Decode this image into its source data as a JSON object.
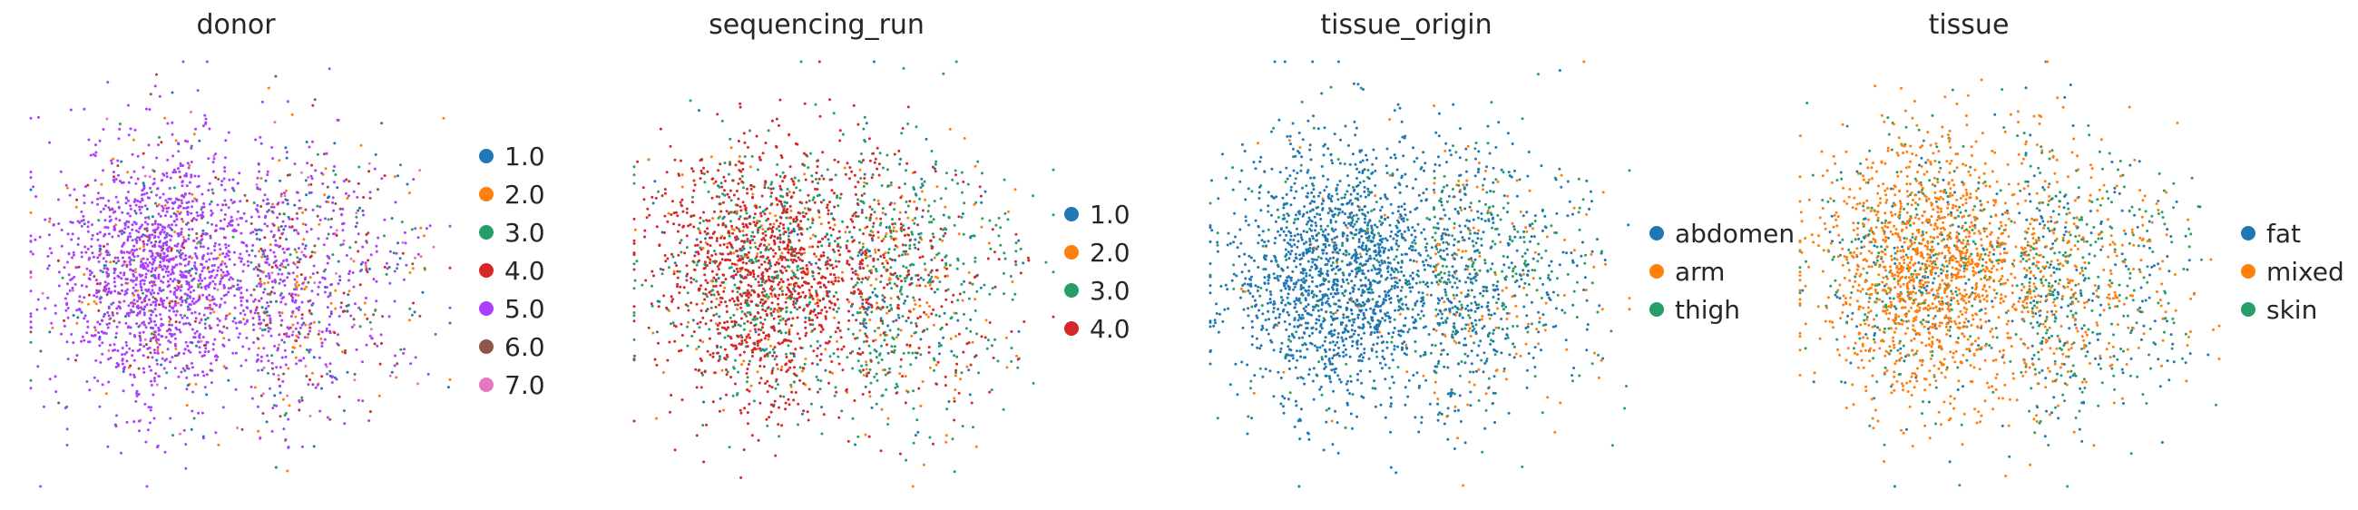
{
  "figure": {
    "palette": [
      "#1f77b4",
      "#ff7f0e",
      "#279e68",
      "#d62728",
      "#aa40fc",
      "#8c564b",
      "#e377c2"
    ]
  },
  "chart_data": [
    {
      "type": "scatter",
      "title": "donor",
      "legend": [
        "1.0",
        "2.0",
        "3.0",
        "4.0",
        "5.0",
        "6.0",
        "7.0"
      ],
      "legend_position": "right",
      "categories": [
        "1.0",
        "2.0",
        "3.0",
        "4.0",
        "5.0",
        "6.0",
        "7.0"
      ],
      "dominant_category": "5.0",
      "category_share": [
        0.05,
        0.08,
        0.05,
        0.04,
        0.7,
        0.05,
        0.03
      ],
      "axes_visible": false,
      "grid": false
    },
    {
      "type": "scatter",
      "title": "sequencing_run",
      "legend": [
        "1.0",
        "2.0",
        "3.0",
        "4.0"
      ],
      "legend_position": "right",
      "categories": [
        "1.0",
        "2.0",
        "3.0",
        "4.0"
      ],
      "dominant_category": "4.0",
      "category_share": [
        0.08,
        0.12,
        0.38,
        0.42
      ],
      "axes_visible": false,
      "grid": false
    },
    {
      "type": "scatter",
      "title": "tissue_origin",
      "legend": [
        "abdomen",
        "arm",
        "thigh"
      ],
      "legend_position": "right",
      "categories": [
        "abdomen",
        "arm",
        "thigh"
      ],
      "dominant_category": "abdomen",
      "category_share": [
        0.78,
        0.04,
        0.18
      ],
      "axes_visible": false,
      "grid": false
    },
    {
      "type": "scatter",
      "title": "tissue",
      "legend": [
        "fat",
        "mixed",
        "skin"
      ],
      "legend_position": "right",
      "categories": [
        "fat",
        "mixed",
        "skin"
      ],
      "dominant_category": "mixed",
      "category_share": [
        0.12,
        0.58,
        0.3
      ],
      "axes_visible": false,
      "grid": false
    }
  ]
}
